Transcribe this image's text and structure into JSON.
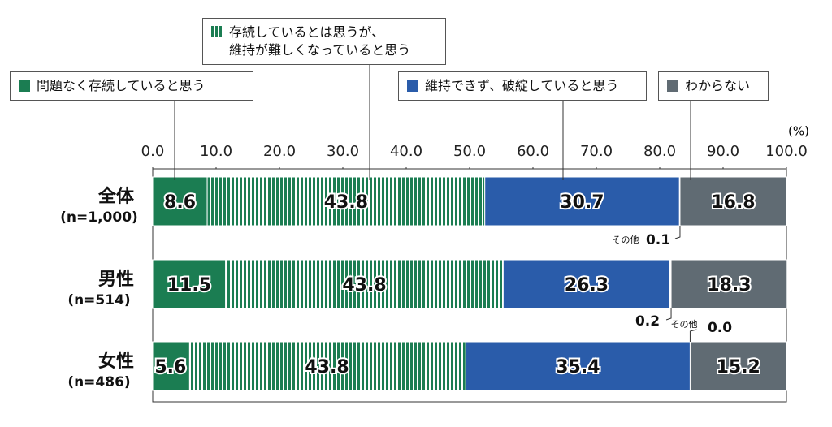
{
  "chart_data": {
    "type": "stacked-bar",
    "categories": [
      "全体",
      "男性",
      "女性"
    ],
    "category_notes": [
      "(n=1,000)",
      "(n=514)",
      "(n=486)"
    ],
    "unit_label": "(%)",
    "xlim": [
      0,
      100
    ],
    "xticks": [
      {
        "value": 0,
        "label": "0.0"
      },
      {
        "value": 10,
        "label": "10.0"
      },
      {
        "value": 20,
        "label": "20.0"
      },
      {
        "value": 30,
        "label": "30.0"
      },
      {
        "value": 40,
        "label": "40.0"
      },
      {
        "value": 50,
        "label": "50.0"
      },
      {
        "value": 60,
        "label": "60.0"
      },
      {
        "value": 70,
        "label": "70.0"
      },
      {
        "value": 80,
        "label": "80.0"
      },
      {
        "value": 90,
        "label": "90.0"
      },
      {
        "value": 100,
        "label": "100.0"
      }
    ],
    "series": [
      {
        "name": "問題なく存続していると思う",
        "color": "#1b7d52",
        "values": [
          8.6,
          11.5,
          5.6
        ]
      },
      {
        "name": "存続しているとは思うが、\n維持が難しくなっていると思う",
        "color": "#1b7d52",
        "pattern": "stripes",
        "values": [
          43.8,
          43.8,
          43.8
        ]
      },
      {
        "name": "維持できず、破綻していると思う",
        "color": "#2a5caa",
        "values": [
          30.7,
          26.3,
          35.4
        ]
      },
      {
        "name": "その他",
        "color": "#ffffff",
        "values": [
          0.1,
          0.2,
          0.0
        ],
        "value_labels": [
          "0.1",
          "0.2",
          "0.0"
        ],
        "legend": false
      },
      {
        "name": "わからない",
        "color": "#606b73",
        "values": [
          16.8,
          18.3,
          15.2
        ]
      }
    ]
  }
}
